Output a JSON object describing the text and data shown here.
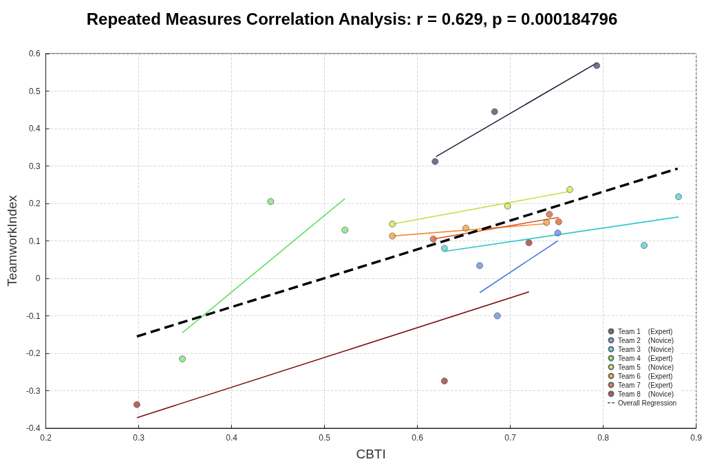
{
  "chart_data": {
    "type": "scatter",
    "title": "Repeated Measures Correlation Analysis: r = 0.629, p = 0.000184796",
    "xlabel": "CBTI",
    "ylabel": "TeamworkIndex",
    "xlim": [
      0.2,
      0.9
    ],
    "xticks": [
      0.2,
      0.3,
      0.4,
      0.5,
      0.6,
      0.7,
      0.8,
      0.9
    ],
    "ylim": [
      -0.4,
      0.6
    ],
    "yticks": [
      -0.4,
      -0.3,
      -0.2,
      -0.1,
      0,
      0.1,
      0.2,
      0.3,
      0.4,
      0.5,
      0.6
    ],
    "grid": true,
    "legend": "bottom right",
    "marker": "circle",
    "series": [
      {
        "name": "Team 1    (Expert)",
        "color": "#5b4b6b",
        "x": [
          0.619,
          0.683,
          0.793
        ],
        "values": [
          0.312,
          0.445,
          0.568
        ]
      },
      {
        "name": "Team 2    (Novice)",
        "color": "#6b8ee8",
        "x": [
          0.667,
          0.686,
          0.751
        ],
        "values": [
          0.034,
          -0.1,
          0.121
        ]
      },
      {
        "name": "Team 3    (Novice)",
        "color": "#4fd3d6",
        "x": [
          0.629,
          0.844,
          0.881
        ],
        "values": [
          0.08,
          0.088,
          0.218
        ]
      },
      {
        "name": "Team 4    (Expert)",
        "color": "#7ee87e",
        "x": [
          0.347,
          0.442,
          0.522
        ],
        "values": [
          -0.215,
          0.205,
          0.129
        ]
      },
      {
        "name": "Team 5    (Novice)",
        "color": "#d4e856",
        "x": [
          0.573,
          0.697,
          0.764
        ],
        "values": [
          0.145,
          0.193,
          0.237
        ]
      },
      {
        "name": "Team 6    (Expert)",
        "color": "#f5a04a",
        "x": [
          0.573,
          0.652,
          0.739
        ],
        "values": [
          0.113,
          0.134,
          0.149
        ]
      },
      {
        "name": "Team 7    (Expert)",
        "color": "#e0663a",
        "x": [
          0.617,
          0.742,
          0.752
        ],
        "values": [
          0.105,
          0.171,
          0.151
        ]
      },
      {
        "name": "Team 8    (Novice)",
        "color": "#a04040",
        "x": [
          0.298,
          0.629,
          0.72
        ],
        "values": [
          -0.337,
          -0.274,
          0.095
        ]
      },
      {
        "type": "line",
        "marker": "none",
        "color": "#2a1a3a",
        "line_style": "solid",
        "x": [
          0.62,
          0.793
        ],
        "values": [
          0.325,
          0.575
        ]
      },
      {
        "type": "line",
        "marker": "none",
        "color": "#4a78e0",
        "line_style": "solid",
        "x": [
          0.667,
          0.751
        ],
        "values": [
          -0.038,
          0.1
        ]
      },
      {
        "type": "line",
        "marker": "none",
        "color": "#2ec8cc",
        "line_style": "solid",
        "x": [
          0.629,
          0.881
        ],
        "values": [
          0.072,
          0.164
        ]
      },
      {
        "type": "line",
        "marker": "none",
        "color": "#5ee05e",
        "line_style": "solid",
        "x": [
          0.347,
          0.522
        ],
        "values": [
          -0.145,
          0.213
        ]
      },
      {
        "type": "line",
        "marker": "none",
        "color": "#c8e040",
        "line_style": "solid",
        "x": [
          0.573,
          0.764
        ],
        "values": [
          0.145,
          0.232
        ]
      },
      {
        "type": "line",
        "marker": "none",
        "color": "#f09030",
        "line_style": "solid",
        "x": [
          0.573,
          0.739
        ],
        "values": [
          0.113,
          0.146
        ]
      },
      {
        "type": "line",
        "marker": "none",
        "color": "#d85020",
        "line_style": "solid",
        "x": [
          0.617,
          0.752
        ],
        "values": [
          0.105,
          0.163
        ]
      },
      {
        "type": "line",
        "marker": "none",
        "color": "#7a1010",
        "line_style": "solid",
        "x": [
          0.298,
          0.72
        ],
        "values": [
          -0.372,
          -0.036
        ]
      },
      {
        "type": "line",
        "marker": "none",
        "name": "Overall Regression",
        "color": "#000000",
        "line_style": "dashed",
        "x": [
          0.298,
          0.88
        ],
        "values": [
          -0.155,
          0.293
        ]
      }
    ]
  }
}
